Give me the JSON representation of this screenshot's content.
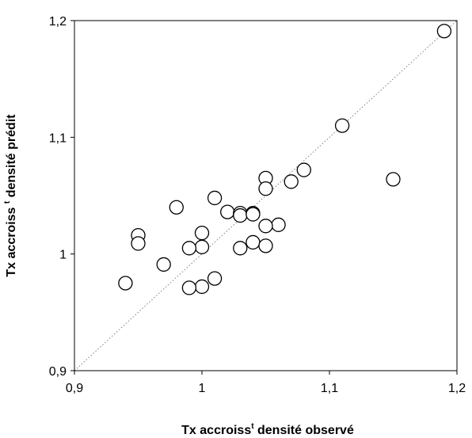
{
  "chart_data": {
    "type": "scatter",
    "title": "",
    "xlabel": {
      "before": "Tx accroiss",
      "sup": "t",
      "after": " densité observé"
    },
    "ylabel": {
      "before": "Tx accroiss ",
      "sup": "t",
      "after": " densité prédit"
    },
    "xlim": [
      0.9,
      1.2
    ],
    "ylim": [
      0.9,
      1.2
    ],
    "x_ticks": [
      0.9,
      1,
      1.1,
      1.2
    ],
    "x_tick_labels": [
      "0,9",
      "1",
      "1,1",
      "1,2"
    ],
    "y_ticks": [
      0.9,
      1,
      1.1,
      1.2
    ],
    "y_tick_labels": [
      "0,9",
      "1",
      "1,1",
      "1,2"
    ],
    "grid": false,
    "legend": "none",
    "reference_line": {
      "type": "identity",
      "style": "dotted",
      "color": "#808080"
    },
    "marker": {
      "shape": "open-circle",
      "color": "#000000"
    },
    "points": [
      {
        "x": 1.19,
        "y": 1.191
      },
      {
        "x": 1.11,
        "y": 1.11
      },
      {
        "x": 1.15,
        "y": 1.064
      },
      {
        "x": 1.08,
        "y": 1.072
      },
      {
        "x": 1.07,
        "y": 1.062
      },
      {
        "x": 1.05,
        "y": 1.065
      },
      {
        "x": 1.05,
        "y": 1.056
      },
      {
        "x": 1.01,
        "y": 1.048
      },
      {
        "x": 0.98,
        "y": 1.04
      },
      {
        "x": 1.02,
        "y": 1.036
      },
      {
        "x": 1.03,
        "y": 1.035
      },
      {
        "x": 1.03,
        "y": 1.033
      },
      {
        "x": 1.04,
        "y": 1.035
      },
      {
        "x": 1.04,
        "y": 1.034
      },
      {
        "x": 1.06,
        "y": 1.025
      },
      {
        "x": 1.05,
        "y": 1.024
      },
      {
        "x": 1.04,
        "y": 1.01
      },
      {
        "x": 1.05,
        "y": 1.007
      },
      {
        "x": 1.03,
        "y": 1.005
      },
      {
        "x": 1.0,
        "y": 1.018
      },
      {
        "x": 1.0,
        "y": 1.006
      },
      {
        "x": 0.99,
        "y": 1.005
      },
      {
        "x": 0.95,
        "y": 1.016
      },
      {
        "x": 0.95,
        "y": 1.009
      },
      {
        "x": 0.97,
        "y": 0.991
      },
      {
        "x": 1.01,
        "y": 0.979
      },
      {
        "x": 1.0,
        "y": 0.972
      },
      {
        "x": 0.99,
        "y": 0.971
      },
      {
        "x": 0.94,
        "y": 0.975
      }
    ]
  }
}
